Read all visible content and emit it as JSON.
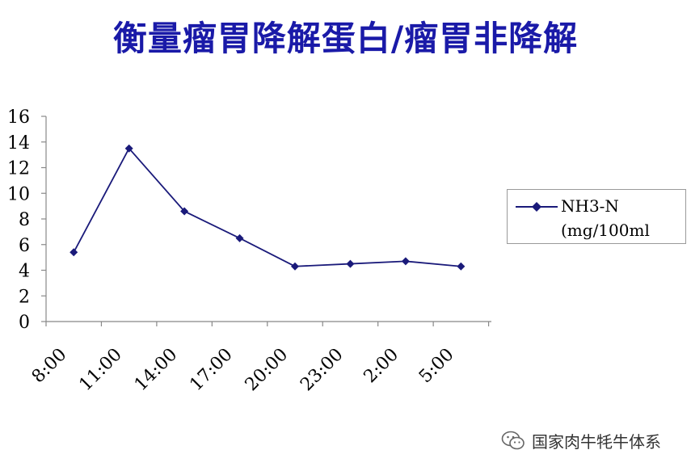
{
  "title": "衡量瘤胃降解蛋白/瘤胃非降解",
  "chart_data": {
    "type": "line",
    "categories": [
      "8:00",
      "11:00",
      "14:00",
      "17:00",
      "20:00",
      "23:00",
      "2:00",
      "5:00"
    ],
    "series": [
      {
        "name": "NH3-N (mg/100ml",
        "color": "#1a1a7a",
        "marker": "diamond",
        "values": [
          5.4,
          13.5,
          8.6,
          6.5,
          4.3,
          4.5,
          4.7,
          4.3
        ]
      }
    ],
    "ylim": [
      0,
      16
    ],
    "yticks": [
      "0",
      "2",
      "4",
      "6",
      "8",
      "10",
      "12",
      "14",
      "16"
    ],
    "grid": false,
    "legend_position": "right"
  },
  "legend": {
    "line1": "NH3-N",
    "line2": "(mg/100ml"
  },
  "watermark": {
    "icon": "wechat-icon",
    "text": "国家肉牛牦牛体系"
  }
}
